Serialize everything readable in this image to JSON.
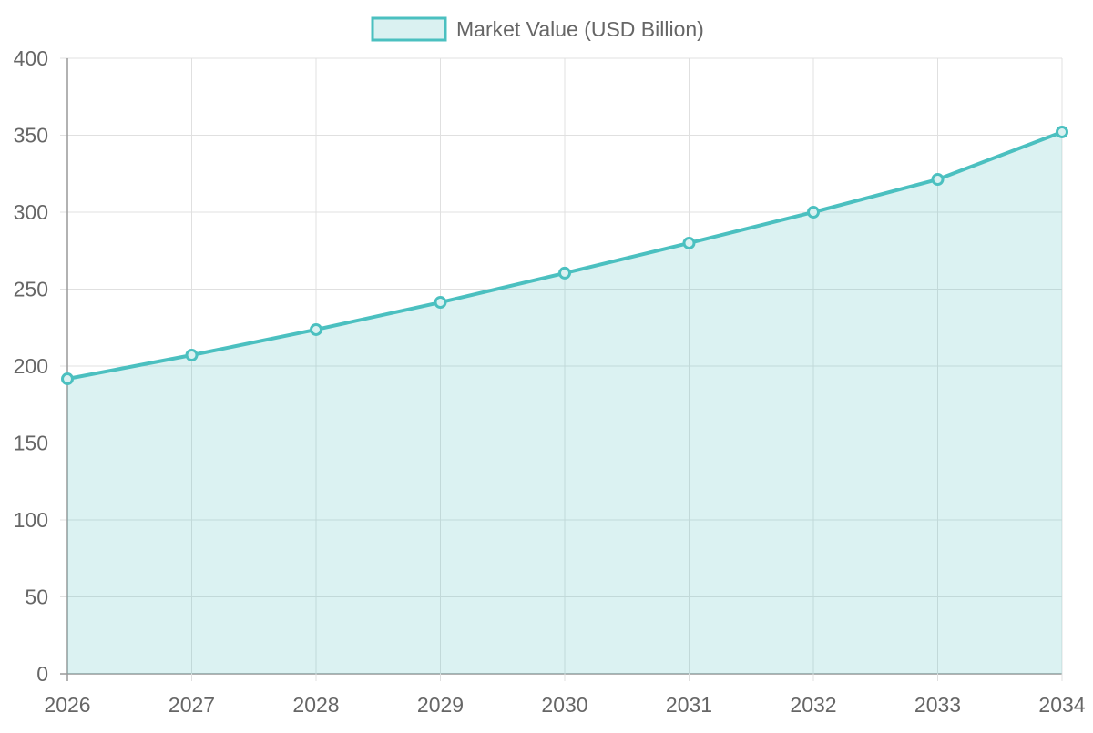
{
  "chart_data": {
    "type": "area",
    "title": "",
    "xlabel": "",
    "ylabel": "",
    "categories": [
      "2026",
      "2027",
      "2028",
      "2029",
      "2030",
      "2031",
      "2032",
      "2033",
      "2034"
    ],
    "series": [
      {
        "name": "Market Value (USD Billion)",
        "values": [
          191.7,
          207.1,
          223.7,
          241.4,
          260.4,
          279.9,
          300.0,
          321.3,
          352.1
        ]
      }
    ],
    "ylim": [
      0,
      400
    ],
    "yticks": [
      0,
      50,
      100,
      150,
      200,
      250,
      300,
      350,
      400
    ],
    "grid": true,
    "legend": "top-center",
    "colors": {
      "line": "#4bc0c0",
      "fill": "#daf1f1",
      "grid": "#e0e0e0",
      "axis": "#999999",
      "text": "#666666"
    }
  }
}
